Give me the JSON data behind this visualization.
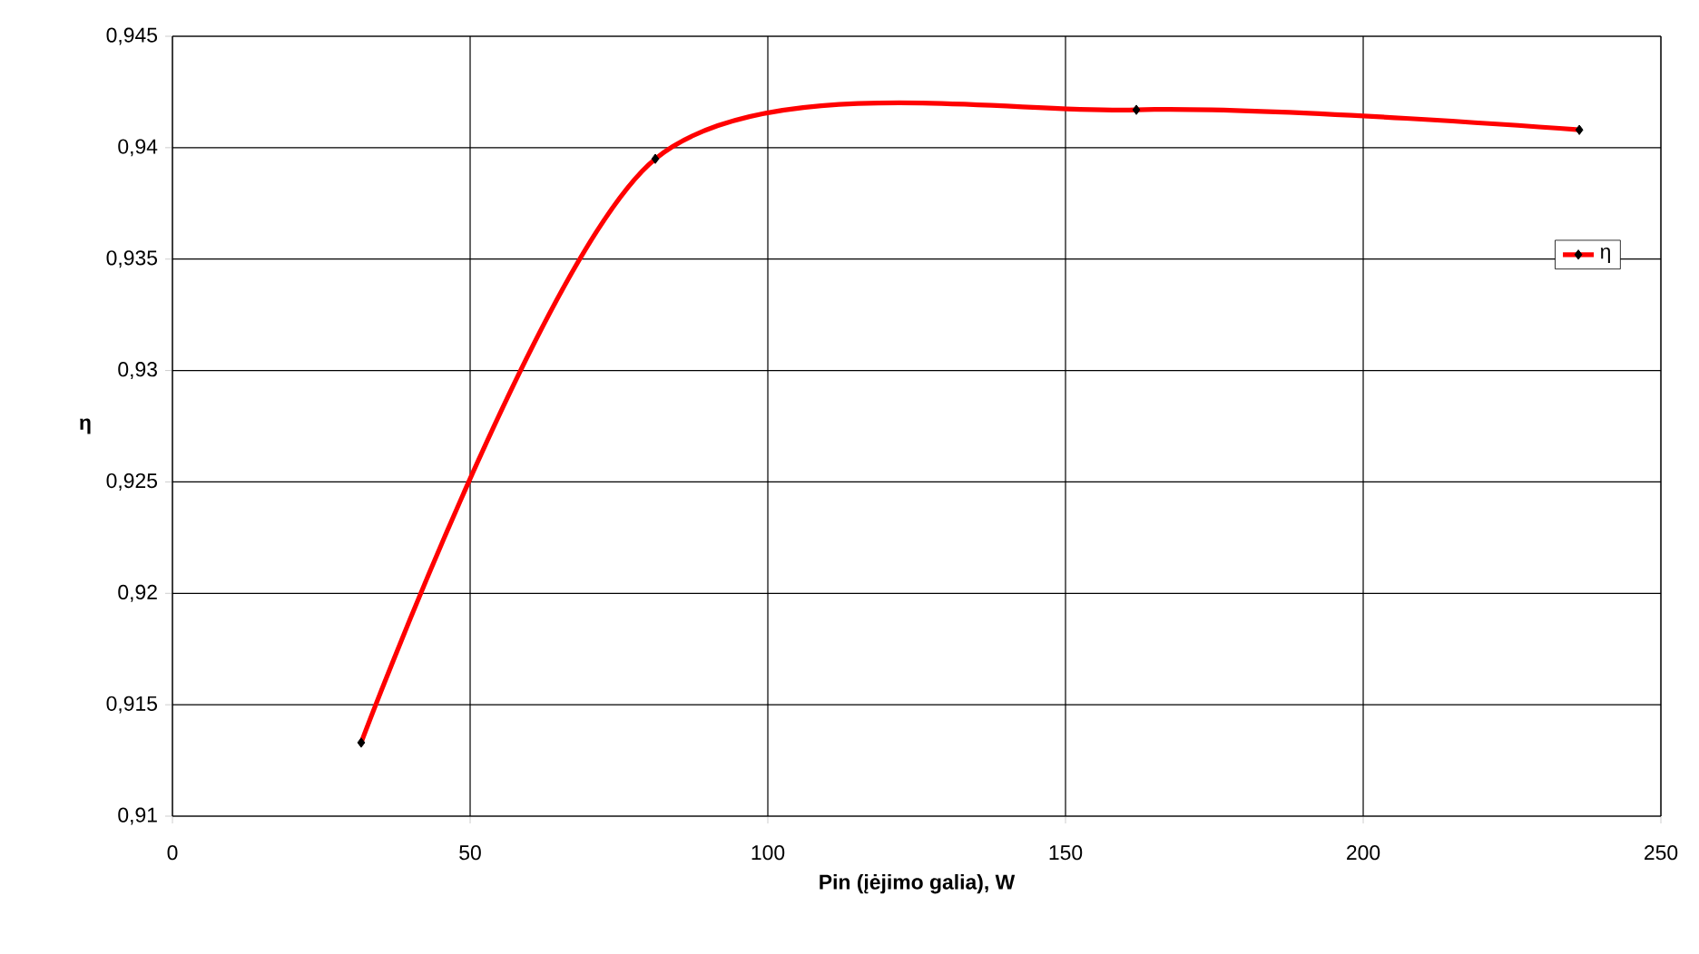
{
  "chart_data": {
    "type": "line",
    "xlabel": "Pin (įėjimo galia), W",
    "ylabel": "η",
    "series": [
      {
        "name": "η",
        "color": "#ff0000",
        "x": [
          31.7,
          81.1,
          161.9,
          236.3
        ],
        "values": [
          0.9133,
          0.9395,
          0.9417,
          0.9408
        ]
      }
    ],
    "marker": "diamond",
    "legend": "right",
    "grid": true,
    "xlim": [
      0,
      250
    ],
    "xticks": [
      0,
      50,
      100,
      150,
      200,
      250
    ],
    "ylim": [
      0.91,
      0.945
    ],
    "yticks": [
      {
        "value": 0.91,
        "label": "0,91"
      },
      {
        "value": 0.915,
        "label": "0,915"
      },
      {
        "value": 0.92,
        "label": "0,92"
      },
      {
        "value": 0.925,
        "label": "0,925"
      },
      {
        "value": 0.93,
        "label": "0,93"
      },
      {
        "value": 0.935,
        "label": "0,935"
      },
      {
        "value": 0.94,
        "label": "0,94"
      },
      {
        "value": 0.945,
        "label": "0,945"
      }
    ]
  }
}
